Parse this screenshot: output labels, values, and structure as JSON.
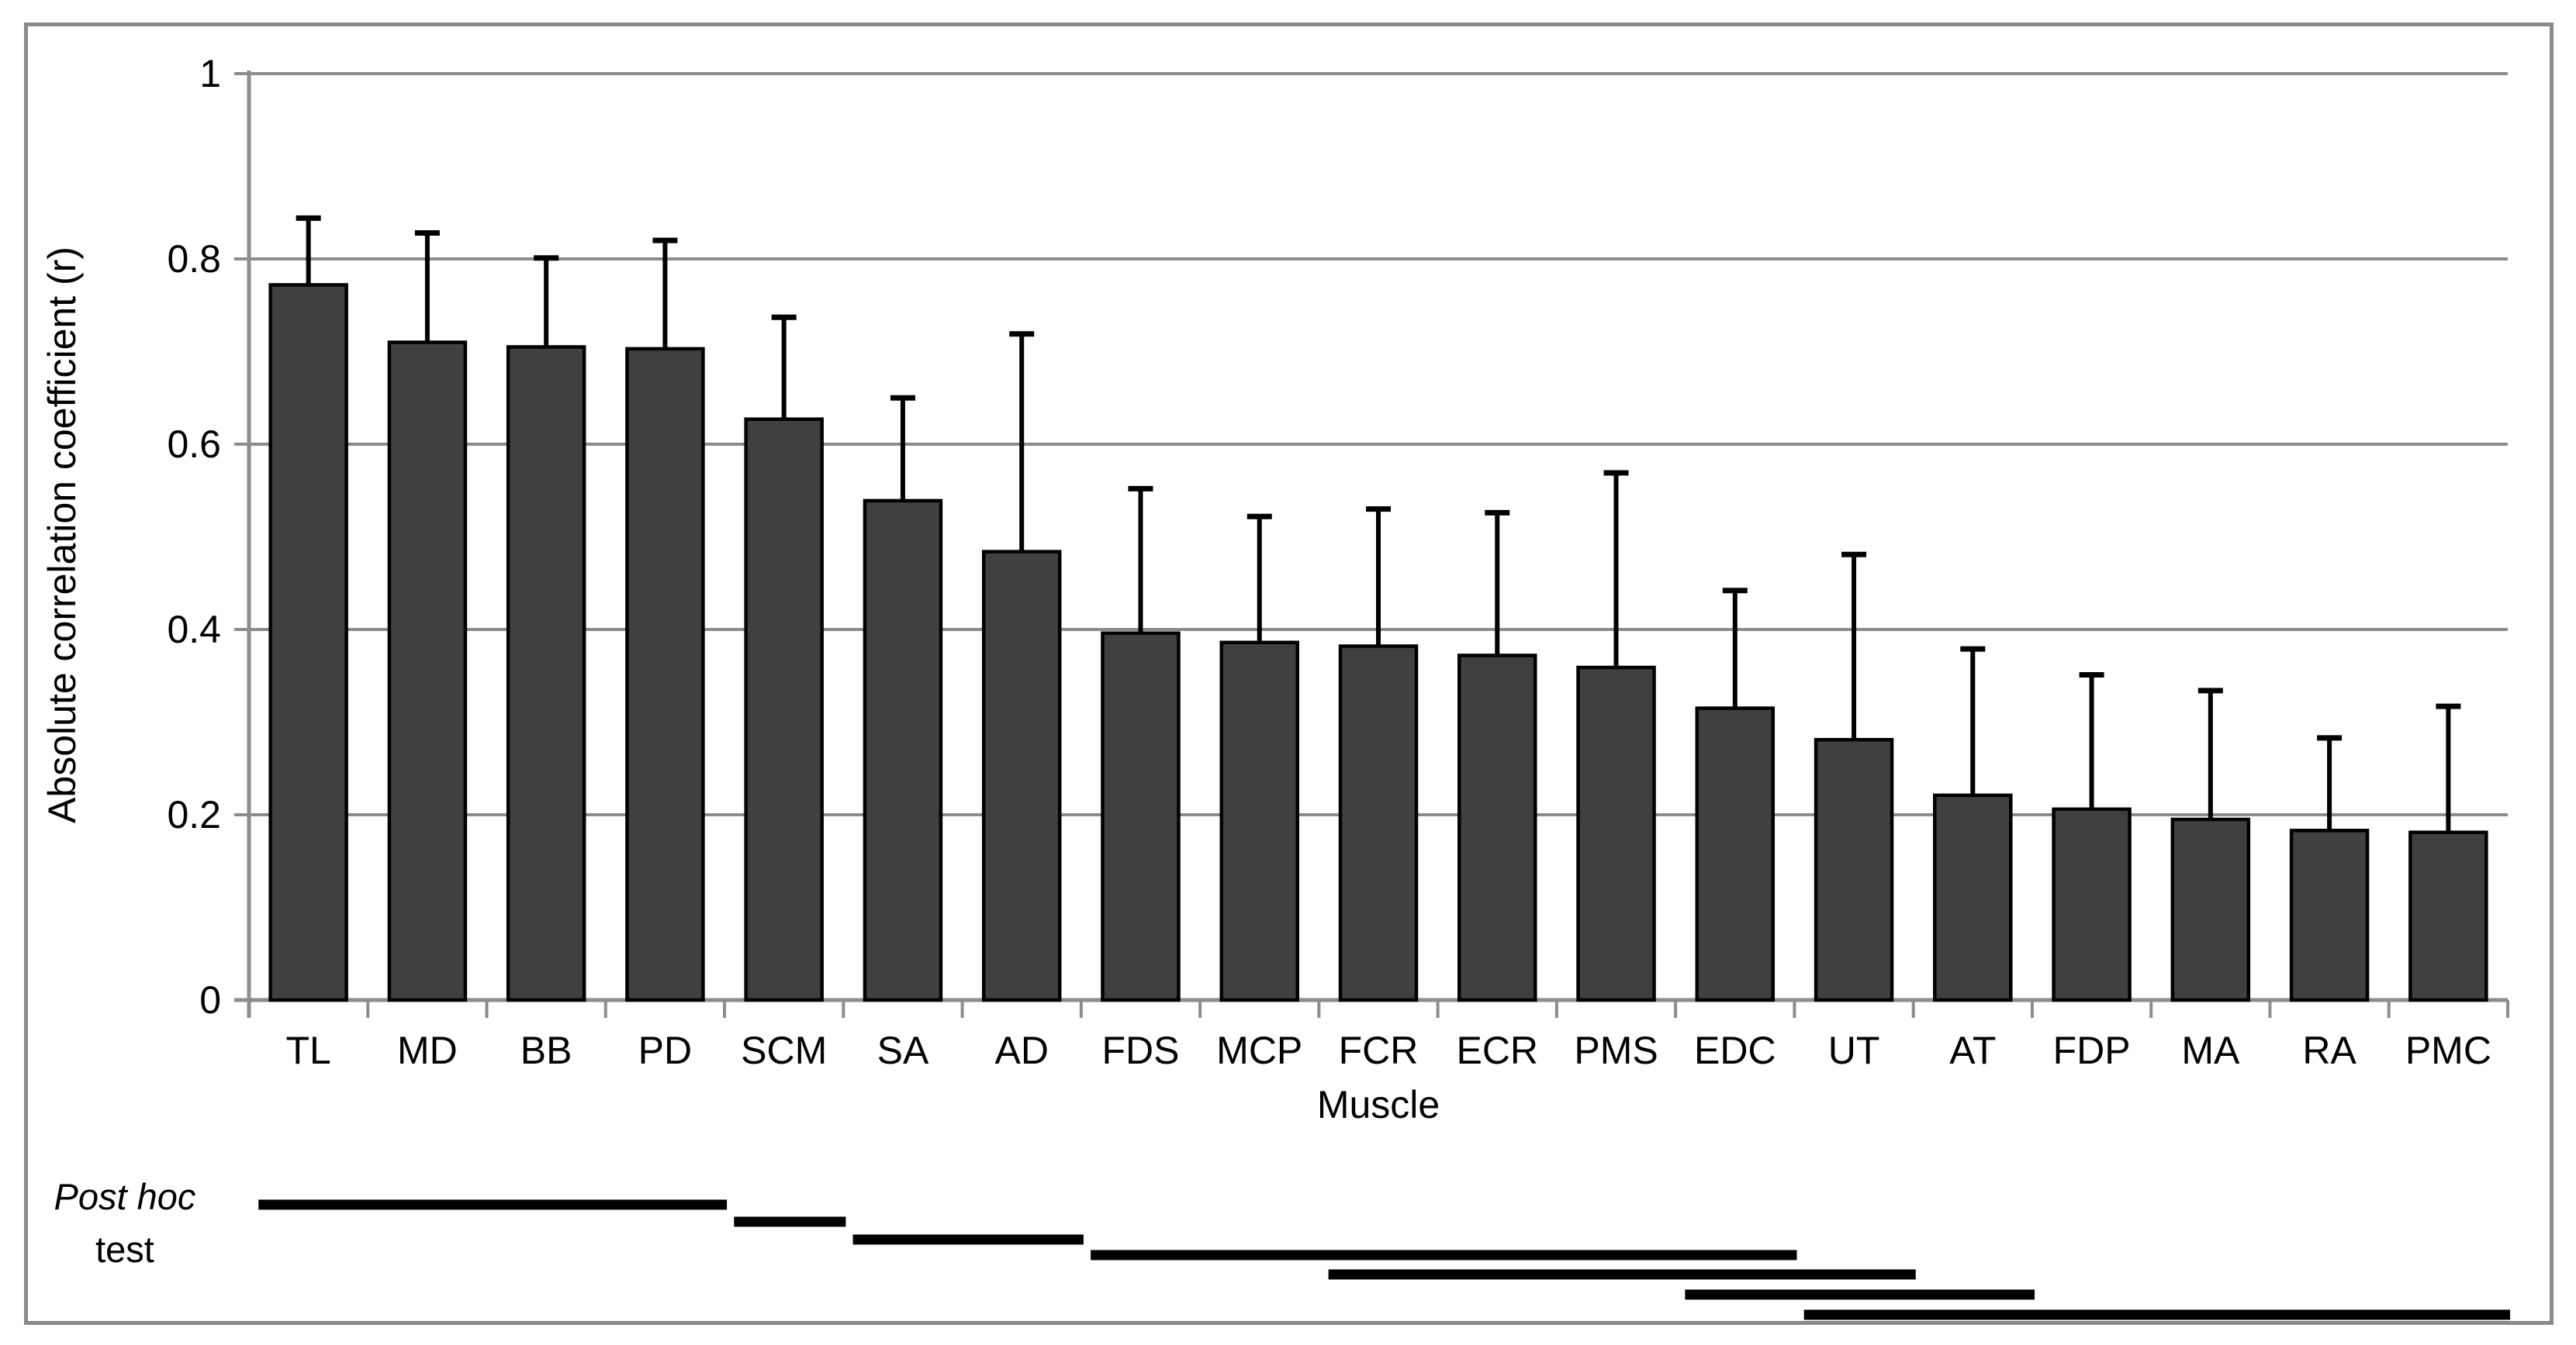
{
  "figure": {
    "y_axis": {
      "title": "Absolute correlation coefficient (r)",
      "tick_labels": [
        "0",
        "0.2",
        "0.4",
        "0.6",
        "0.8",
        "1"
      ]
    },
    "x_axis": {
      "title": "Muscle"
    },
    "post_hoc": {
      "label_line1": "Post hoc",
      "label_line2": "test"
    },
    "colors": {
      "bar_fill": "#404040",
      "bar_stroke": "#000000",
      "grid": "#8c8c8c",
      "axis": "#8c8c8c",
      "error_bar": "#000000",
      "post_hoc_line": "#000000",
      "frame": "#8a8a8a",
      "text": "#000000"
    }
  },
  "chart_data": {
    "type": "bar",
    "title": "",
    "xlabel": "Muscle",
    "ylabel": "Absolute correlation coefficient (r)",
    "ylim": [
      0,
      1
    ],
    "yticks": [
      0,
      0.2,
      0.4,
      0.6,
      0.8,
      1
    ],
    "grid": "horizontal",
    "legend": "none",
    "categories": [
      "TL",
      "MD",
      "BB",
      "PD",
      "SCM",
      "SA",
      "AD",
      "FDS",
      "MCP",
      "FCR",
      "ECR",
      "PMS",
      "EDC",
      "UT",
      "AT",
      "FDP",
      "MA",
      "RA",
      "PMC"
    ],
    "values": [
      0.772,
      0.71,
      0.705,
      0.703,
      0.627,
      0.539,
      0.484,
      0.396,
      0.386,
      0.382,
      0.372,
      0.359,
      0.315,
      0.281,
      0.221,
      0.206,
      0.195,
      0.183,
      0.181
    ],
    "error_top": [
      0.844,
      0.828,
      0.801,
      0.82,
      0.737,
      0.65,
      0.719,
      0.552,
      0.522,
      0.53,
      0.526,
      0.569,
      0.442,
      0.481,
      0.379,
      0.351,
      0.334,
      0.283,
      0.317
    ],
    "error_bars": "upper only",
    "post_hoc_groups": [
      {
        "from": "TL",
        "to": "PD"
      },
      {
        "from": "SCM",
        "to": "SCM"
      },
      {
        "from": "SA",
        "to": "AD"
      },
      {
        "from": "FDS",
        "to": "EDC"
      },
      {
        "from": "FCR",
        "to": "UT"
      },
      {
        "from": "EDC",
        "to": "AT"
      },
      {
        "from": "UT",
        "to": "PMC"
      }
    ]
  }
}
